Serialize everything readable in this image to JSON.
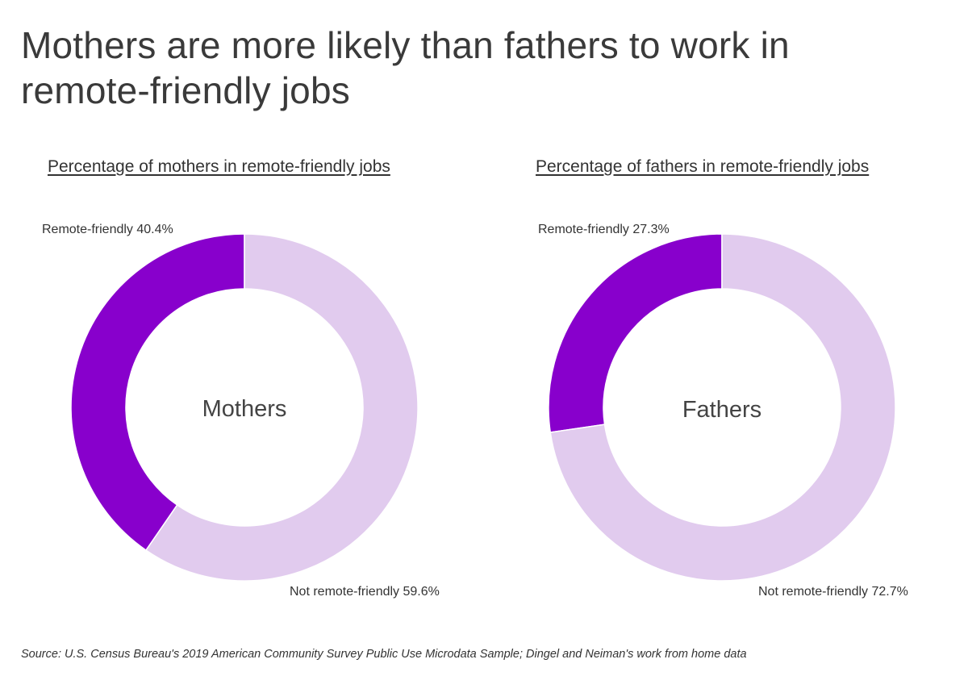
{
  "title": "Mothers are more likely than fathers to work in remote-friendly jobs",
  "colors": {
    "remote": "#8800cc",
    "not_remote": "#e1cbee",
    "separator": "#ffffff"
  },
  "chart_data": [
    {
      "type": "pie",
      "subtitle": "Percentage of mothers in remote-friendly jobs",
      "center_label": "Mothers",
      "slices": [
        {
          "label": "Remote-friendly",
          "value": 40.4,
          "display": "Remote-friendly 40.4%"
        },
        {
          "label": "Not remote-friendly",
          "value": 59.6,
          "display": "Not remote-friendly 59.6%"
        }
      ]
    },
    {
      "type": "pie",
      "subtitle": "Percentage of fathers in remote-friendly jobs",
      "center_label": "Fathers",
      "slices": [
        {
          "label": "Remote-friendly",
          "value": 27.3,
          "display": "Remote-friendly 27.3%"
        },
        {
          "label": "Not remote-friendly",
          "value": 72.7,
          "display": "Not remote-friendly 72.7%"
        }
      ]
    }
  ],
  "source": "Source:  U.S. Census Bureau's 2019 American Community Survey Public Use Microdata Sample; Dingel and Neiman's work from home data"
}
